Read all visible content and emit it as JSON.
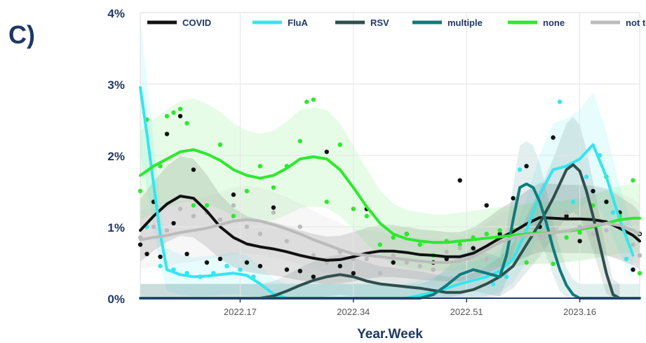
{
  "panel_label": "C)",
  "chart_data": {
    "type": "line",
    "xlabel": "Year.Week",
    "ylabel": "",
    "ylim": [
      0,
      4
    ],
    "y_unit": "%",
    "y_ticks": [
      {
        "value": 0,
        "label": "0%"
      },
      {
        "value": 1,
        "label": "1%"
      },
      {
        "value": 2,
        "label": "2%"
      },
      {
        "value": 3,
        "label": "3%"
      },
      {
        "value": 4,
        "label": "4%"
      }
    ],
    "x_ticks": [
      {
        "week": 17,
        "label": "2022.17"
      },
      {
        "week": 34,
        "label": "2022.34"
      },
      {
        "week": 51,
        "label": "2022.51"
      },
      {
        "week": 68,
        "label": "2023.16"
      }
    ],
    "x_range": [
      2,
      77
    ],
    "grid": true,
    "legend_position": "top",
    "series": [
      {
        "name": "COVID",
        "color": "#111111",
        "x": [
          2,
          4,
          6,
          8,
          10,
          12,
          14,
          16,
          18,
          20,
          22,
          24,
          26,
          28,
          30,
          32,
          34,
          36,
          38,
          40,
          42,
          44,
          46,
          48,
          50,
          52,
          54,
          56,
          58,
          60,
          62,
          64,
          66,
          68,
          70,
          72,
          74,
          76,
          77
        ],
        "y": [
          0.95,
          1.15,
          1.32,
          1.43,
          1.4,
          1.22,
          1.0,
          0.85,
          0.76,
          0.72,
          0.69,
          0.65,
          0.6,
          0.56,
          0.53,
          0.54,
          0.58,
          0.63,
          0.66,
          0.66,
          0.64,
          0.61,
          0.6,
          0.58,
          0.58,
          0.63,
          0.73,
          0.84,
          0.93,
          1.04,
          1.13,
          1.12,
          1.11,
          1.11,
          1.1,
          1.07,
          0.98,
          0.88,
          0.8
        ],
        "points": [
          [
            2,
            0.75
          ],
          [
            3,
            0.62
          ],
          [
            4,
            1.35
          ],
          [
            5,
            0.58
          ],
          [
            6,
            2.3
          ],
          [
            7,
            1.05
          ],
          [
            8,
            2.55
          ],
          [
            9,
            0.62
          ],
          [
            10,
            1.8
          ],
          [
            12,
            0.5
          ],
          [
            14,
            0.55
          ],
          [
            16,
            1.45
          ],
          [
            18,
            0.5
          ],
          [
            20,
            0.45
          ],
          [
            22,
            1.27
          ],
          [
            24,
            0.4
          ],
          [
            26,
            0.38
          ],
          [
            28,
            0.3
          ],
          [
            30,
            2.05
          ],
          [
            32,
            0.45
          ],
          [
            34,
            0.35
          ],
          [
            36,
            1.25
          ],
          [
            40,
            0.5
          ],
          [
            42,
            0.9
          ],
          [
            46,
            0.5
          ],
          [
            48,
            0.55
          ],
          [
            50,
            1.65
          ],
          [
            52,
            0.7
          ],
          [
            54,
            1.3
          ],
          [
            56,
            0.9
          ],
          [
            58,
            1.4
          ],
          [
            60,
            1.85
          ],
          [
            62,
            1.0
          ],
          [
            64,
            2.25
          ],
          [
            66,
            1.15
          ],
          [
            68,
            0.8
          ],
          [
            70,
            1.5
          ],
          [
            72,
            1.35
          ],
          [
            74,
            1.2
          ],
          [
            76,
            0.4
          ],
          [
            77,
            0.9
          ]
        ]
      },
      {
        "name": "FluA",
        "color": "#33e6f0",
        "x": [
          2,
          3,
          4,
          5,
          6,
          8,
          10,
          12,
          14,
          16,
          18,
          20,
          22,
          24,
          26,
          30,
          34,
          38,
          42,
          46,
          50,
          52,
          54,
          56,
          58,
          60,
          62,
          64,
          66,
          68,
          70,
          72,
          74,
          76
        ],
        "y": [
          2.95,
          2.3,
          1.6,
          0.9,
          0.4,
          0.33,
          0.3,
          0.31,
          0.33,
          0.35,
          0.32,
          0.2,
          0.06,
          0,
          0,
          0,
          0,
          0,
          0,
          0.08,
          0.2,
          0.25,
          0.3,
          0.38,
          0.55,
          0.95,
          1.45,
          1.8,
          1.85,
          1.95,
          2.15,
          1.7,
          1.1,
          0.6
        ],
        "points": [
          [
            3,
            1.0
          ],
          [
            5,
            0.45
          ],
          [
            7,
            0.4
          ],
          [
            9,
            0.35
          ],
          [
            11,
            0.3
          ],
          [
            13,
            0.35
          ],
          [
            15,
            0.45
          ],
          [
            17,
            0.4
          ],
          [
            19,
            0.3
          ],
          [
            55,
            0.2
          ],
          [
            57,
            0.3
          ],
          [
            59,
            1.8
          ],
          [
            61,
            0.9
          ],
          [
            63,
            1.0
          ],
          [
            65,
            2.75
          ],
          [
            67,
            1.35
          ],
          [
            69,
            1.7
          ],
          [
            71,
            2.0
          ],
          [
            73,
            1.2
          ],
          [
            75,
            0.55
          ]
        ]
      },
      {
        "name": "RSV",
        "color": "#2f4f4f",
        "x": [
          2,
          6,
          10,
          14,
          18,
          20,
          22,
          24,
          26,
          28,
          30,
          32,
          34,
          36,
          38,
          40,
          42,
          44,
          46,
          48,
          50,
          52,
          54,
          56,
          58,
          60,
          62,
          64,
          65,
          66,
          67,
          68,
          69,
          70,
          71,
          72,
          73,
          74
        ],
        "y": [
          0,
          0,
          0,
          0,
          0,
          0,
          0.03,
          0.1,
          0.18,
          0.25,
          0.3,
          0.33,
          0.3,
          0.24,
          0.2,
          0.18,
          0.16,
          0.14,
          0.11,
          0.08,
          0.08,
          0.12,
          0.2,
          0.3,
          0.45,
          0.75,
          1.05,
          1.4,
          1.6,
          1.8,
          1.87,
          1.78,
          1.5,
          1.15,
          0.75,
          0.35,
          0.05,
          0
        ]
      },
      {
        "name": "multiple",
        "color": "#107a7a",
        "x": [
          2,
          10,
          20,
          30,
          40,
          44,
          46,
          48,
          50,
          52,
          54,
          56,
          57,
          58,
          59,
          60,
          61,
          62,
          63,
          64,
          65,
          66,
          67,
          68,
          70,
          72,
          74,
          76,
          77
        ],
        "y": [
          0,
          0,
          0,
          0,
          0,
          0,
          0.05,
          0.18,
          0.33,
          0.4,
          0.35,
          0.3,
          0.6,
          1.1,
          1.55,
          1.6,
          1.55,
          1.35,
          1.05,
          0.7,
          0.4,
          0.18,
          0.05,
          0,
          0,
          0,
          0,
          0,
          0
        ]
      },
      {
        "name": "none",
        "color": "#2ee82e",
        "x": [
          2,
          4,
          6,
          8,
          10,
          12,
          14,
          16,
          18,
          20,
          22,
          24,
          26,
          28,
          30,
          32,
          34,
          36,
          38,
          40,
          42,
          44,
          46,
          48,
          50,
          52,
          54,
          56,
          58,
          60,
          62,
          64,
          66,
          68,
          70,
          72,
          74,
          76,
          77
        ],
        "y": [
          1.72,
          1.85,
          1.95,
          2.05,
          2.08,
          2.02,
          1.93,
          1.8,
          1.72,
          1.68,
          1.72,
          1.82,
          1.95,
          1.98,
          1.95,
          1.8,
          1.55,
          1.28,
          1.05,
          0.9,
          0.83,
          0.8,
          0.78,
          0.78,
          0.8,
          0.82,
          0.84,
          0.86,
          0.88,
          0.9,
          0.91,
          0.92,
          0.94,
          0.96,
          1.0,
          1.05,
          1.1,
          1.12,
          1.12
        ],
        "points": [
          [
            2,
            1.5
          ],
          [
            3,
            2.5
          ],
          [
            5,
            1.85
          ],
          [
            6,
            2.55
          ],
          [
            7,
            2.6
          ],
          [
            8,
            2.65
          ],
          [
            9,
            2.45
          ],
          [
            10,
            1.3
          ],
          [
            12,
            1.3
          ],
          [
            14,
            2.15
          ],
          [
            16,
            1.15
          ],
          [
            18,
            1.5
          ],
          [
            20,
            1.85
          ],
          [
            22,
            1.55
          ],
          [
            24,
            1.85
          ],
          [
            26,
            2.2
          ],
          [
            27,
            2.75
          ],
          [
            28,
            2.78
          ],
          [
            30,
            1.35
          ],
          [
            32,
            2.15
          ],
          [
            34,
            1.25
          ],
          [
            36,
            1.15
          ],
          [
            38,
            0.75
          ],
          [
            40,
            0.85
          ],
          [
            42,
            0.9
          ],
          [
            44,
            0.75
          ],
          [
            46,
            0.6
          ],
          [
            48,
            0.8
          ],
          [
            50,
            0.75
          ],
          [
            52,
            0.85
          ],
          [
            54,
            0.9
          ],
          [
            56,
            0.95
          ],
          [
            58,
            0.95
          ],
          [
            60,
            0.5
          ],
          [
            62,
            0.9
          ],
          [
            64,
            0.48
          ],
          [
            66,
            0.85
          ],
          [
            68,
            0.92
          ],
          [
            70,
            1.3
          ],
          [
            72,
            1.7
          ],
          [
            74,
            1.15
          ],
          [
            76,
            1.65
          ],
          [
            77,
            0.35
          ]
        ]
      },
      {
        "name": "not tested",
        "color": "#bbbbbb",
        "x": [
          2,
          4,
          6,
          8,
          10,
          12,
          14,
          16,
          18,
          20,
          22,
          24,
          26,
          28,
          30,
          32,
          34,
          36,
          38,
          40,
          42,
          44,
          46,
          48,
          50,
          52,
          54,
          56,
          58,
          60,
          62,
          64,
          66,
          68,
          70,
          72,
          74,
          76,
          77
        ],
        "y": [
          0.82,
          0.85,
          0.88,
          0.92,
          0.95,
          0.98,
          1.03,
          1.08,
          1.1,
          1.08,
          1.03,
          0.97,
          0.9,
          0.82,
          0.75,
          0.68,
          0.62,
          0.6,
          0.58,
          0.56,
          0.54,
          0.52,
          0.5,
          0.5,
          0.52,
          0.58,
          0.68,
          0.78,
          0.85,
          0.88,
          0.9,
          0.92,
          0.94,
          0.98,
          1.02,
          1.05,
          1.02,
          0.95,
          0.9
        ],
        "points": [
          [
            2,
            0.85
          ],
          [
            4,
            1.0
          ],
          [
            6,
            0.95
          ],
          [
            8,
            1.25
          ],
          [
            10,
            1.15
          ],
          [
            12,
            1.2
          ],
          [
            14,
            1.1
          ],
          [
            16,
            1.3
          ],
          [
            18,
            1.0
          ],
          [
            20,
            0.9
          ],
          [
            22,
            1.2
          ],
          [
            24,
            0.8
          ],
          [
            26,
            1.0
          ],
          [
            28,
            0.6
          ],
          [
            30,
            0.5
          ],
          [
            32,
            0.65
          ],
          [
            34,
            0.55
          ],
          [
            36,
            0.55
          ],
          [
            38,
            0.35
          ],
          [
            40,
            0.6
          ],
          [
            42,
            0.5
          ],
          [
            44,
            0.45
          ],
          [
            46,
            0.4
          ],
          [
            48,
            0.65
          ],
          [
            50,
            0.7
          ],
          [
            52,
            0.6
          ],
          [
            54,
            0.55
          ],
          [
            56,
            0.8
          ],
          [
            58,
            0.9
          ],
          [
            60,
            1.05
          ],
          [
            62,
            0.85
          ],
          [
            64,
            0.95
          ],
          [
            66,
            1.2
          ],
          [
            68,
            1.0
          ],
          [
            70,
            0.9
          ],
          [
            72,
            0.95
          ],
          [
            74,
            1.1
          ],
          [
            76,
            0.75
          ],
          [
            77,
            0.6
          ]
        ]
      }
    ]
  }
}
